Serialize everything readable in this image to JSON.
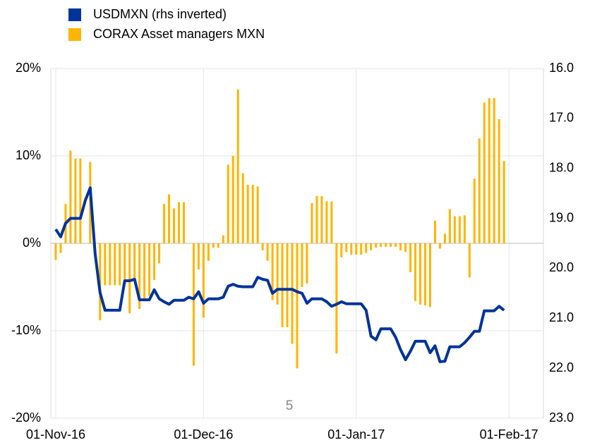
{
  "chart_data": {
    "type": "bar_line",
    "x": [
      "2016-11-01",
      "2016-11-02",
      "2016-11-03",
      "2016-11-04",
      "2016-11-05",
      "2016-11-06",
      "2016-11-07",
      "2016-11-08",
      "2016-11-09",
      "2016-11-10",
      "2016-11-11",
      "2016-11-12",
      "2016-11-13",
      "2016-11-14",
      "2016-11-15",
      "2016-11-16",
      "2016-11-17",
      "2016-11-18",
      "2016-11-19",
      "2016-11-20",
      "2016-11-21",
      "2016-11-22",
      "2016-11-23",
      "2016-11-24",
      "2016-11-25",
      "2016-11-26",
      "2016-11-27",
      "2016-11-28",
      "2016-11-29",
      "2016-11-30",
      "2016-12-01",
      "2016-12-02",
      "2016-12-03",
      "2016-12-04",
      "2016-12-05",
      "2016-12-06",
      "2016-12-07",
      "2016-12-08",
      "2016-12-09",
      "2016-12-10",
      "2016-12-11",
      "2016-12-12",
      "2016-12-13",
      "2016-12-14",
      "2016-12-15",
      "2016-12-16",
      "2016-12-17",
      "2016-12-18",
      "2016-12-19",
      "2016-12-20",
      "2016-12-21",
      "2016-12-22",
      "2016-12-23",
      "2016-12-24",
      "2016-12-25",
      "2016-12-26",
      "2016-12-27",
      "2016-12-28",
      "2016-12-29",
      "2016-12-30",
      "2016-12-31",
      "2017-01-01",
      "2017-01-02",
      "2017-01-03",
      "2017-01-04",
      "2017-01-05",
      "2017-01-06",
      "2017-01-07",
      "2017-01-08",
      "2017-01-09",
      "2017-01-10",
      "2017-01-11",
      "2017-01-12",
      "2017-01-13",
      "2017-01-14",
      "2017-01-15",
      "2017-01-16",
      "2017-01-17",
      "2017-01-18",
      "2017-01-19",
      "2017-01-20",
      "2017-01-21",
      "2017-01-22",
      "2017-01-23",
      "2017-01-24",
      "2017-01-25",
      "2017-01-26",
      "2017-01-27",
      "2017-01-28",
      "2017-01-29",
      "2017-01-30",
      "2017-01-31"
    ],
    "series": [
      {
        "name": "USDMXN (rhs inverted)",
        "color": "#003399",
        "kind": "line",
        "axis": "y2",
        "values": [
          19.22,
          19.37,
          19.1,
          19.0,
          19.0,
          19.0,
          18.64,
          18.39,
          19.71,
          20.49,
          20.84,
          20.84,
          20.84,
          20.84,
          20.25,
          20.25,
          20.22,
          20.63,
          20.63,
          20.63,
          20.43,
          20.61,
          20.67,
          20.72,
          20.64,
          20.64,
          20.64,
          20.58,
          20.61,
          20.47,
          20.7,
          20.61,
          20.61,
          20.61,
          20.58,
          20.36,
          20.32,
          20.36,
          20.37,
          20.37,
          20.37,
          20.18,
          20.22,
          20.24,
          20.5,
          20.42,
          20.42,
          20.42,
          20.42,
          20.47,
          20.5,
          20.7,
          20.61,
          20.61,
          20.61,
          20.67,
          20.76,
          20.72,
          20.67,
          20.71,
          20.71,
          20.71,
          20.71,
          20.84,
          21.36,
          21.43,
          21.21,
          21.21,
          21.21,
          21.38,
          21.63,
          21.83,
          21.66,
          21.46,
          21.46,
          21.46,
          21.69,
          21.55,
          21.87,
          21.86,
          21.57,
          21.57,
          21.57,
          21.49,
          21.38,
          21.26,
          21.26,
          20.85,
          20.85,
          20.85,
          20.76,
          20.84
        ]
      },
      {
        "name": "CORAX Asset managers MXN",
        "color": "#ffb400",
        "kind": "bar",
        "values": [
          -1.9,
          -1.1,
          4.5,
          10.6,
          9.7,
          9.7,
          0,
          9.3,
          0,
          -8.8,
          -4.8,
          -4.8,
          -4.8,
          -4.8,
          -4.6,
          -8.0,
          -4.0,
          -7.5,
          -6.5,
          -6.0,
          -4.2,
          -2.3,
          4.5,
          5.6,
          4.0,
          4.7,
          4.7,
          0,
          -14.0,
          -3.0,
          -8.5,
          -2.0,
          -0.5,
          -0.5,
          0.9,
          9.0,
          10.0,
          17.6,
          8.0,
          6.7,
          6.7,
          6.5,
          -0.8,
          -2.0,
          -6.5,
          -7.0,
          -9.6,
          -9.6,
          -11.5,
          -14.3,
          -5.0,
          -4.6,
          4.6,
          5.4,
          5.4,
          4.8,
          4.8,
          -12.6,
          -1.6,
          -1.0,
          -1.3,
          -1.3,
          -1.3,
          -1.1,
          -0.8,
          -0.5,
          -0.4,
          -0.4,
          -0.4,
          -0.4,
          -0.8,
          -1.0,
          -3.3,
          -6.6,
          -7.0,
          -7.1,
          -7.3,
          2.6,
          -0.6,
          1.1,
          3.9,
          3.1,
          3.1,
          3.2,
          -3.9,
          7.4,
          12.0,
          16.1,
          16.6,
          16.6,
          14.2,
          9.4
        ]
      }
    ],
    "xlim": [
      "2016-10-31",
      "2017-02-08"
    ],
    "xticks": [
      {
        "value": "2016-11-01",
        "label": "01-Nov-16"
      },
      {
        "value": "2016-12-01",
        "label": "01-Dec-16"
      },
      {
        "value": "2017-01-01",
        "label": "01-Jan-17"
      },
      {
        "value": "2017-02-01",
        "label": "01-Feb-17"
      }
    ],
    "ylim": [
      -20,
      20
    ],
    "yticks": [
      {
        "value": -20,
        "label": "-20%"
      },
      {
        "value": -10,
        "label": "-10%"
      },
      {
        "value": 0,
        "label": "0%"
      },
      {
        "value": 10,
        "label": "10%"
      },
      {
        "value": 20,
        "label": "20%"
      }
    ],
    "y2lim": [
      16,
      23
    ],
    "y2_inverted": true,
    "y2ticks": [
      {
        "value": 16,
        "label": "16.0"
      },
      {
        "value": 17,
        "label": "17.0"
      },
      {
        "value": 18,
        "label": "18.0"
      },
      {
        "value": 19,
        "label": "19.0"
      },
      {
        "value": 20,
        "label": "20.0"
      },
      {
        "value": 21,
        "label": "21.0"
      },
      {
        "value": 22,
        "label": "22.0"
      },
      {
        "value": 23,
        "label": "23.0"
      }
    ],
    "annotation": "5",
    "grid": true,
    "legend": "top-left"
  }
}
